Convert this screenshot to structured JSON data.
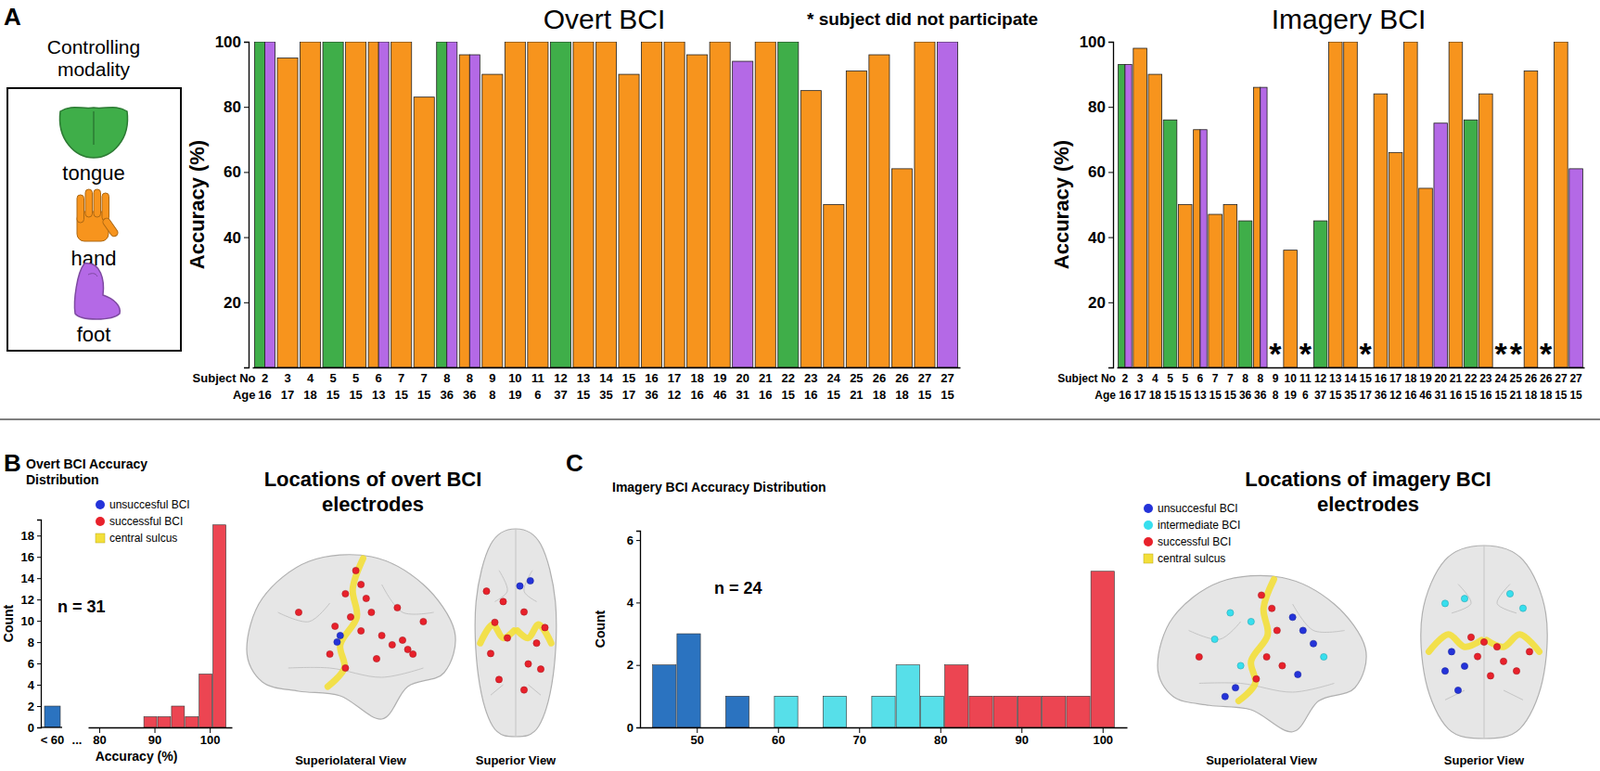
{
  "figure": {
    "panel_labels": [
      "A",
      "B",
      "C"
    ],
    "modality_title": "Controlling modality",
    "missing_note": "* subject did not participate",
    "missing_symbol": "*",
    "row_labels": [
      "Subject No",
      "Age"
    ],
    "brain_b": {
      "title": "Locations of overt BCI electrodes",
      "views": [
        "Superiolateral View",
        "Superior View"
      ],
      "legend": [
        {
          "label": "unsuccesful BCI",
          "color": "#2433d9"
        },
        {
          "label": "successful BCI",
          "color": "#e8212b"
        },
        {
          "label": "central sulcus",
          "color": "#f3df3a"
        }
      ]
    },
    "brain_c": {
      "title": "Locations of imagery BCI electrodes",
      "views": [
        "Superiolateral View",
        "Superior View"
      ],
      "legend": [
        {
          "label": "unsuccesful BCI",
          "color": "#2433d9"
        },
        {
          "label": "intermediate BCI",
          "color": "#37dfee"
        },
        {
          "label": "successful BCI",
          "color": "#e8212b"
        },
        {
          "label": "central sulcus",
          "color": "#f3df3a"
        }
      ]
    }
  },
  "chart_data": [
    {
      "type": "bar",
      "title": "Overt BCI",
      "ylabel": "Accuracy (%)",
      "legend": "left",
      "categories": [
        "2",
        "3",
        "4",
        "5",
        "5",
        "6",
        "7",
        "7",
        "8",
        "8",
        "9",
        "10",
        "11",
        "12",
        "13",
        "14",
        "15",
        "16",
        "17",
        "18",
        "19",
        "20",
        "21",
        "22",
        "23",
        "24",
        "25",
        "26",
        "26",
        "27",
        "27"
      ],
      "ages": [
        16,
        17,
        18,
        15,
        15,
        13,
        15,
        15,
        36,
        36,
        8,
        19,
        6,
        37,
        15,
        35,
        17,
        36,
        12,
        16,
        46,
        31,
        16,
        15,
        16,
        15,
        21,
        18,
        18,
        15,
        15
      ],
      "ylim": [
        0,
        100
      ],
      "yticks": [
        20,
        40,
        60,
        80,
        100
      ],
      "series": [
        {
          "name": "tongue",
          "color": "#3fae49",
          "values": [
            100,
            null,
            null,
            100,
            null,
            null,
            null,
            null,
            100,
            null,
            null,
            null,
            null,
            100,
            null,
            null,
            null,
            null,
            null,
            null,
            null,
            null,
            null,
            100,
            null,
            null,
            null,
            null,
            null,
            null,
            null
          ]
        },
        {
          "name": "hand",
          "color": "#f7941d",
          "values": [
            null,
            95,
            100,
            null,
            100,
            100,
            100,
            83,
            null,
            96,
            90,
            100,
            100,
            null,
            100,
            100,
            90,
            100,
            100,
            96,
            100,
            null,
            100,
            null,
            85,
            50,
            91,
            96,
            61,
            100,
            null
          ]
        },
        {
          "name": "foot",
          "color": "#b469e6",
          "values": [
            100,
            null,
            null,
            null,
            null,
            100,
            null,
            null,
            100,
            96,
            null,
            null,
            null,
            null,
            null,
            null,
            null,
            null,
            null,
            null,
            null,
            94,
            null,
            null,
            null,
            null,
            null,
            null,
            null,
            null,
            100
          ]
        }
      ]
    },
    {
      "type": "bar",
      "title": "Imagery BCI",
      "ylabel": "Accuracy (%)",
      "categories": [
        "2",
        "3",
        "4",
        "5",
        "5",
        "6",
        "7",
        "7",
        "8",
        "8",
        "9",
        "10",
        "11",
        "12",
        "13",
        "14",
        "15",
        "16",
        "17",
        "18",
        "19",
        "20",
        "21",
        "22",
        "23",
        "24",
        "25",
        "26",
        "26",
        "27",
        "27"
      ],
      "ages": [
        16,
        17,
        18,
        15,
        15,
        13,
        15,
        15,
        36,
        36,
        8,
        19,
        6,
        37,
        15,
        35,
        17,
        36,
        12,
        16,
        46,
        31,
        16,
        15,
        16,
        15,
        21,
        18,
        18,
        15,
        15
      ],
      "ylim": [
        0,
        100
      ],
      "yticks": [
        20,
        40,
        60,
        80,
        100
      ],
      "series": [
        {
          "color": "#3fae49",
          "values": [
            93,
            null,
            null,
            76,
            null,
            null,
            null,
            null,
            45,
            null,
            null,
            null,
            null,
            45,
            null,
            null,
            null,
            null,
            null,
            null,
            null,
            null,
            null,
            76,
            null,
            null,
            null,
            null,
            null,
            null,
            null
          ]
        },
        {
          "color": "#f7941d",
          "values": [
            null,
            98,
            90,
            null,
            50,
            73,
            47,
            50,
            null,
            86,
            null,
            36,
            null,
            null,
            100,
            100,
            null,
            84,
            66,
            100,
            55,
            null,
            100,
            null,
            84,
            null,
            null,
            91,
            null,
            100,
            null
          ]
        },
        {
          "color": "#b469e6",
          "values": [
            93,
            null,
            null,
            null,
            null,
            73,
            null,
            null,
            null,
            86,
            null,
            null,
            null,
            null,
            null,
            null,
            null,
            null,
            null,
            null,
            null,
            75,
            null,
            null,
            null,
            null,
            null,
            null,
            null,
            null,
            61
          ]
        }
      ]
    },
    {
      "type": "histogram",
      "title": "Overt BCI Accuracy Distribution",
      "xlabel": "Accuracy (%)",
      "ylabel": "Count",
      "annotation": "n = 31",
      "underflow": {
        "label": "< 60",
        "count": 2,
        "color": "#2b73c0"
      },
      "axis_break": "...",
      "bins": [
        88,
        90.5,
        93,
        95.5,
        98,
        100.5,
        103
      ],
      "counts": [
        1,
        1,
        2,
        1,
        5,
        19
      ],
      "colors": [
        "#ec4552",
        "#ec4552",
        "#ec4552",
        "#ec4552",
        "#ec4552",
        "#ec4552"
      ],
      "xlim": [
        78,
        104
      ],
      "xticks": [
        80,
        90,
        100
      ],
      "ylim": [
        0,
        19.5
      ],
      "yticks": [
        0,
        2,
        4,
        6,
        8,
        10,
        12,
        14,
        16,
        18
      ]
    },
    {
      "type": "histogram",
      "title": "Imagery BCI Accuracy Distribution",
      "ylabel": "Count",
      "annotation": "n = 24",
      "bins": [
        44.5,
        47.5,
        50.5,
        53.5,
        56.5,
        59.5,
        62.5,
        65.5,
        68.5,
        71.5,
        74.5,
        77.5,
        80.5,
        83.5,
        86.5,
        89.5,
        92.5,
        95.5,
        98.5,
        101.5
      ],
      "counts": [
        2,
        3,
        0,
        1,
        0,
        1,
        0,
        1,
        0,
        1,
        2,
        1,
        2,
        1,
        1,
        1,
        1,
        1,
        5
      ],
      "colors": [
        "#2b73c0",
        "#2b73c0",
        "#2b73c0",
        "#2b73c0",
        "#57dfe9",
        "#57dfe9",
        "#57dfe9",
        "#57dfe9",
        "#57dfe9",
        "#57dfe9",
        "#57dfe9",
        "#57dfe9",
        "#ec4552",
        "#ec4552",
        "#ec4552",
        "#ec4552",
        "#ec4552",
        "#ec4552",
        "#ec4552"
      ],
      "xlim": [
        43,
        103
      ],
      "xticks": [
        50,
        60,
        70,
        80,
        90,
        100
      ],
      "ylim": [
        0,
        6.3
      ],
      "yticks": [
        0,
        2,
        4,
        6
      ]
    }
  ]
}
